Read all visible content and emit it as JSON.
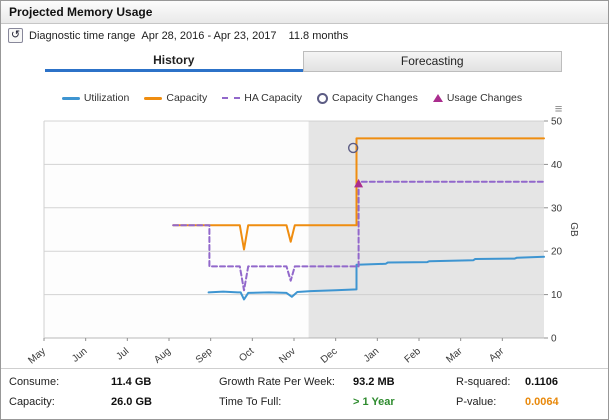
{
  "window": {
    "title": "Projected Memory Usage"
  },
  "icons": {
    "time_range": "↺",
    "chart_menu": "≡"
  },
  "time_range": {
    "label": "Diagnostic time range",
    "range": "Apr 28, 2016 - Apr 23, 2017",
    "duration": "11.8 months"
  },
  "tabs": [
    {
      "label": "History",
      "active": true
    },
    {
      "label": "Forecasting",
      "active": false
    }
  ],
  "legend": [
    {
      "label": "Utilization",
      "type": "line",
      "color": "#3e95d1"
    },
    {
      "label": "Capacity",
      "type": "line",
      "color": "#ef8d10"
    },
    {
      "label": "HA Capacity",
      "type": "dashed",
      "color": "#9268cb"
    },
    {
      "label": "Capacity Changes",
      "type": "circle",
      "color": "#5c5c84"
    },
    {
      "label": "Usage Changes",
      "type": "triangle",
      "color": "#aa2d8e"
    }
  ],
  "chart_data": {
    "type": "line",
    "title": "Projected Memory Usage",
    "unit": "GB",
    "x_domain": [
      0,
      12
    ],
    "x_axis": {
      "labels": [
        "May",
        "Jun",
        "Jul",
        "Aug",
        "Sep",
        "Oct",
        "Nov",
        "Dec",
        "Jan",
        "Feb",
        "Mar",
        "Apr"
      ]
    },
    "y_axis": {
      "min": 0,
      "max": 50,
      "ticks": [
        0,
        10,
        20,
        30,
        40,
        50
      ],
      "label": "GB"
    },
    "forecast_start": 6.35,
    "history_bg": "#fdfdfd",
    "forecast_bg": "#e5e5e5",
    "series": [
      {
        "name": "Utilization",
        "color": "#3e95d1",
        "style": "solid",
        "points": [
          [
            3.95,
            10.5
          ],
          [
            4.3,
            10.7
          ],
          [
            4.65,
            10.5
          ],
          [
            4.72,
            10.5
          ],
          [
            4.8,
            8.9
          ],
          [
            4.9,
            10.4
          ],
          [
            5.4,
            10.5
          ],
          [
            5.82,
            10.4
          ],
          [
            5.95,
            9.5
          ],
          [
            6.08,
            10.6
          ],
          [
            6.4,
            10.8
          ],
          [
            7.0,
            11.0
          ],
          [
            7.5,
            11.2
          ],
          [
            7.5,
            16.9
          ],
          [
            8.2,
            17.1
          ],
          [
            8.25,
            17.4
          ],
          [
            9.2,
            17.5
          ],
          [
            9.25,
            17.7
          ],
          [
            10.3,
            17.9
          ],
          [
            10.35,
            18.2
          ],
          [
            11.3,
            18.3
          ],
          [
            11.35,
            18.5
          ],
          [
            12,
            18.7
          ]
        ]
      },
      {
        "name": "Capacity",
        "color": "#ef8d10",
        "style": "solid",
        "points": [
          [
            3.1,
            26
          ],
          [
            4.7,
            26
          ],
          [
            4.8,
            20.4
          ],
          [
            4.9,
            26
          ],
          [
            5.82,
            26
          ],
          [
            5.92,
            22.2
          ],
          [
            6.02,
            26
          ],
          [
            7.5,
            26
          ],
          [
            7.5,
            46
          ],
          [
            12,
            46
          ]
        ]
      },
      {
        "name": "HA Capacity",
        "color": "#9268cb",
        "style": "dashed",
        "points": [
          [
            3.1,
            26
          ],
          [
            3.97,
            26
          ],
          [
            3.97,
            16.5
          ],
          [
            4.7,
            16.5
          ],
          [
            4.8,
            11
          ],
          [
            4.9,
            16.5
          ],
          [
            5.82,
            16.5
          ],
          [
            5.92,
            13.2
          ],
          [
            6.02,
            16.5
          ],
          [
            7.55,
            16.5
          ],
          [
            7.55,
            36
          ],
          [
            12,
            36
          ]
        ]
      }
    ],
    "markers": [
      {
        "name": "Capacity Changes",
        "shape": "circle",
        "x": 7.42,
        "y": 43.8,
        "color": "#5c5c84"
      },
      {
        "name": "Usage Changes",
        "shape": "triangle",
        "x": 7.55,
        "y": 35.5,
        "color": "#aa2d8e"
      }
    ]
  },
  "stats": {
    "rows": [
      [
        {
          "label": "Consume:",
          "value": "11.4 GB"
        },
        {
          "label": "Growth Rate Per Week:",
          "value": "93.2 MB"
        },
        {
          "label": "R-squared:",
          "value": "0.1106"
        }
      ],
      [
        {
          "label": "Capacity:",
          "value": "26.0 GB"
        },
        {
          "label": "Time To Full:",
          "value": "> 1 Year",
          "color": "#2e8b2e"
        },
        {
          "label": "P-value:",
          "value": "0.0064",
          "color": "#e8880a"
        }
      ]
    ]
  }
}
